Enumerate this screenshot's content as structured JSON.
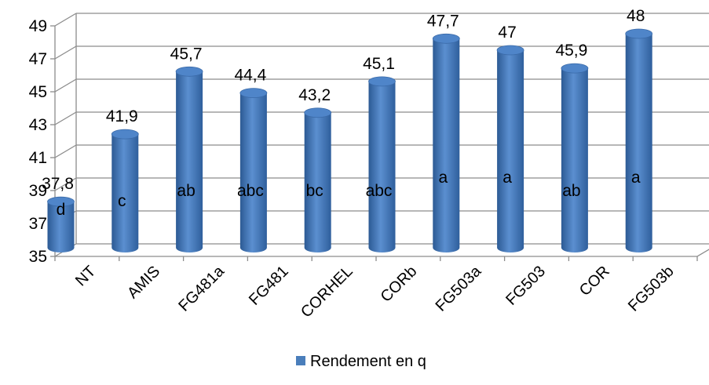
{
  "chart_data": {
    "type": "bar",
    "title": "",
    "xlabel": "",
    "ylabel": "",
    "categories": [
      "NT",
      "AMIS",
      "FG481a",
      "FG481",
      "CORHEL",
      "CORb",
      "FG503a",
      "FG503",
      "COR",
      "FG503b"
    ],
    "series": [
      {
        "name": "Rendement en q",
        "values": [
          37.8,
          41.9,
          45.7,
          44.4,
          43.2,
          45.1,
          47.7,
          47,
          45.9,
          48
        ],
        "value_labels": [
          "37,8",
          "41,9",
          "45,7",
          "44,4",
          "43,2",
          "45,1",
          "47,7",
          "47",
          "45,9",
          "48"
        ],
        "group_letters": [
          "d",
          "c",
          "ab",
          "abc",
          "bc",
          "abc",
          "a",
          "a",
          "ab",
          "a"
        ],
        "color": "#4a7ebb"
      }
    ],
    "ylim": [
      35,
      49
    ],
    "yticks": [
      "35",
      "37",
      "39",
      "41",
      "43",
      "45",
      "47",
      "49"
    ],
    "ytick_values": [
      35,
      37,
      39,
      41,
      43,
      45,
      47,
      49
    ],
    "grid": true,
    "legend": "bottom"
  }
}
